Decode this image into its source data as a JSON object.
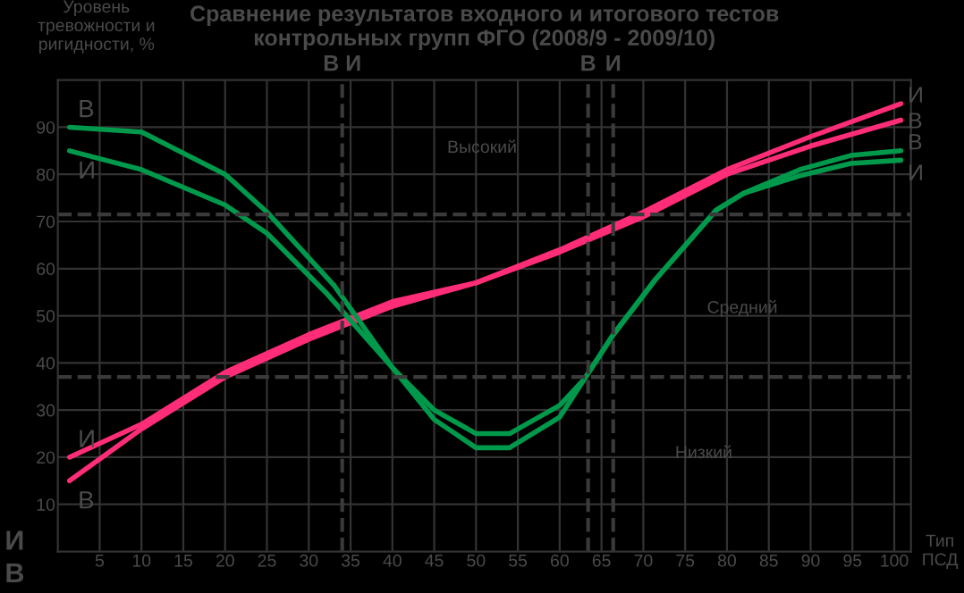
{
  "chart_data": {
    "type": "line",
    "title": "Сравнение результатов входного и итогового тестов\nконтрольных групп ФГО (2008/9 - 2009/10)",
    "ylabel": "Уровень\nтревожности и\nригидности, %",
    "xlim": [
      0,
      102
    ],
    "ylim": [
      0,
      100
    ],
    "xticks": [
      5,
      10,
      15,
      20,
      25,
      30,
      35,
      40,
      45,
      50,
      55,
      60,
      65,
      70,
      75,
      80,
      85,
      90,
      95,
      100
    ],
    "yticks": [
      10,
      20,
      30,
      40,
      50,
      60,
      70,
      80,
      90
    ],
    "grid": true,
    "line_style": "solid",
    "marker": "none",
    "series": [
      {
        "name": "И",
        "color": "#ff2d78",
        "x": [
          1.4,
          10,
          20,
          30,
          40,
          50,
          60,
          70,
          80,
          90,
          100.8
        ],
        "values": [
          20,
          27,
          38,
          46,
          53,
          57,
          64,
          72,
          81,
          88,
          95
        ]
      },
      {
        "name": "В",
        "color": "#ff2d78",
        "x": [
          1.4,
          10,
          20,
          30,
          40,
          50,
          60,
          70,
          80,
          90,
          100.8
        ],
        "values": [
          15,
          26,
          37,
          45,
          52,
          57,
          63.5,
          71,
          80,
          86,
          91.5
        ]
      },
      {
        "name": "В",
        "color": "#00994c",
        "x": [
          1.4,
          10,
          20,
          25,
          33,
          40,
          45,
          50,
          54,
          60,
          63,
          66.4,
          71.4,
          78.7,
          82,
          88.7,
          94.8,
          100.8
        ],
        "values": [
          90,
          89,
          80,
          72,
          56.5,
          39,
          28,
          22,
          22,
          28.5,
          36.7,
          46,
          57.6,
          72.4,
          76,
          81,
          84,
          85
        ]
      },
      {
        "name": "И",
        "color": "#00994c",
        "x": [
          1.4,
          10,
          20,
          25,
          32,
          40,
          45,
          50,
          54,
          60,
          63,
          66.4,
          71.4,
          78.7,
          82,
          88.7,
          94.8,
          100.8
        ],
        "values": [
          85,
          81,
          73.5,
          67.5,
          55,
          39,
          30,
          25,
          25,
          31,
          36.7,
          46,
          57.6,
          72.4,
          76,
          79.7,
          82.3,
          83
        ]
      }
    ],
    "ref_lines": [
      {
        "axis": "y",
        "value": 71.5,
        "line_style": "dashed",
        "color": "#3a3a3a"
      },
      {
        "axis": "y",
        "value": 37,
        "line_style": "dashed",
        "color": "#3a3a3a"
      },
      {
        "axis": "x",
        "value": 34,
        "label": "В И",
        "line_style": "dashed",
        "color": "#3a3a3a"
      },
      {
        "axis": "x",
        "value": 63.4,
        "label": "В",
        "line_style": "dashed",
        "color": "#3a3a3a"
      },
      {
        "axis": "x",
        "value": 66.4,
        "label": "И",
        "line_style": "dashed",
        "color": "#3a3a3a"
      }
    ],
    "annotations": [
      "И",
      "В",
      "Тип ПСД",
      "Высокий",
      "Средний",
      "Низкий"
    ]
  }
}
